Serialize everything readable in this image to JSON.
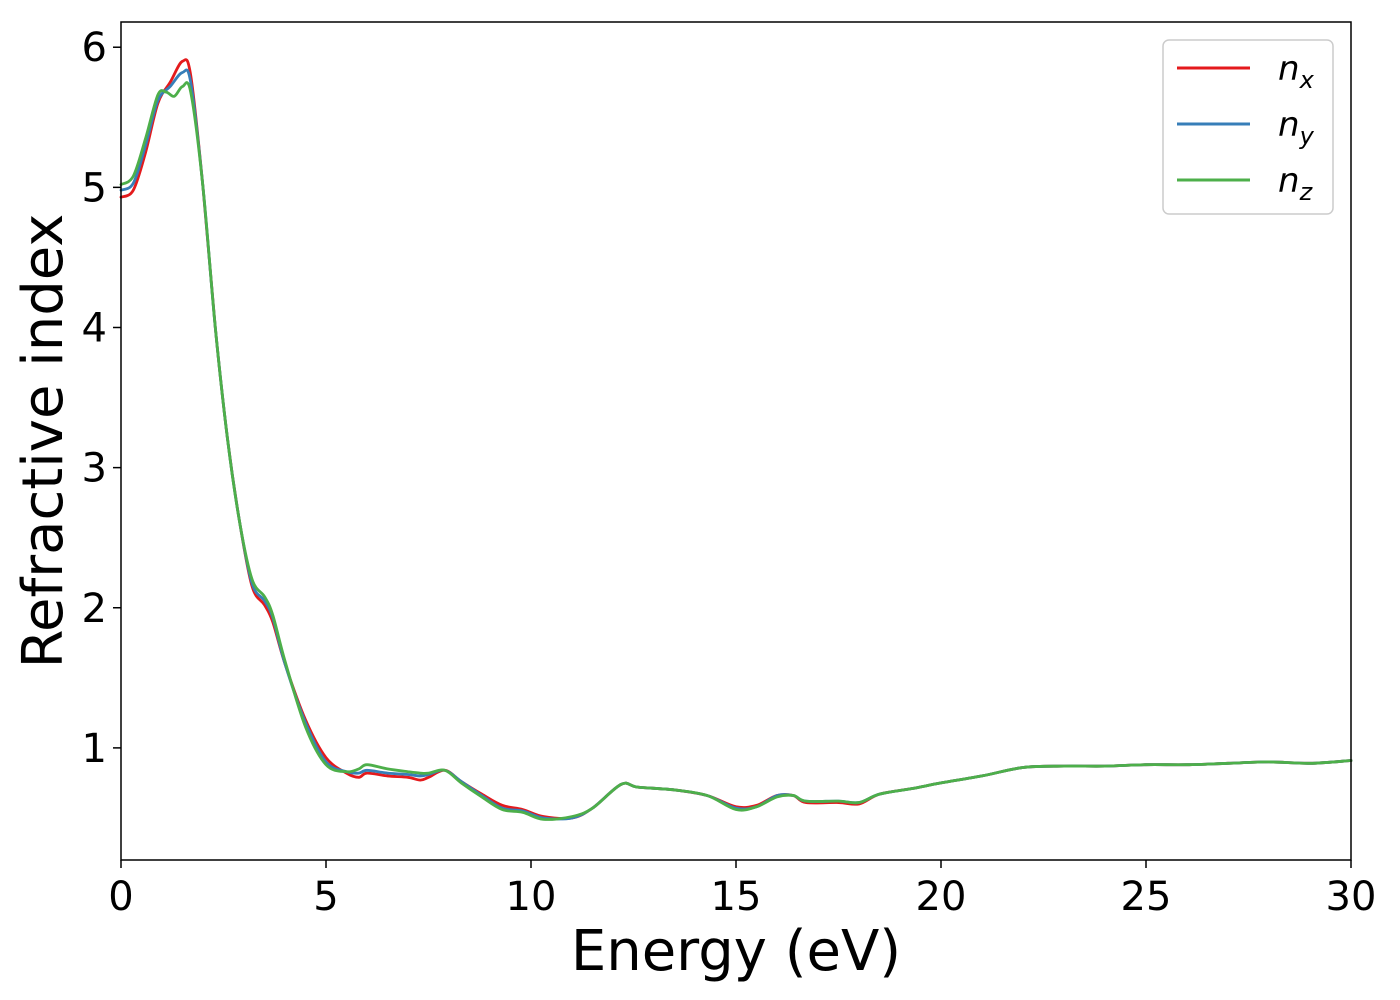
{
  "chart_data": {
    "type": "line",
    "title": "",
    "xlabel": "Energy (eV)",
    "ylabel": "Refractive index",
    "xlim": [
      0,
      30
    ],
    "ylim": [
      0.2,
      6.18
    ],
    "xticks": [
      "0",
      "5",
      "10",
      "15",
      "20",
      "25",
      "30"
    ],
    "yticks": [
      "1",
      "2",
      "3",
      "4",
      "5",
      "6"
    ],
    "xtick_values": [
      0,
      5,
      10,
      15,
      20,
      25,
      30
    ],
    "ytick_values": [
      1,
      2,
      3,
      4,
      5,
      6
    ],
    "grid": false,
    "legend": {
      "placement": "top-right"
    },
    "series": [
      {
        "name": "n",
        "subscript": "x",
        "color": "#e41a1c",
        "points": [
          [
            0,
            4.93
          ],
          [
            0.3,
            4.98
          ],
          [
            0.6,
            5.25
          ],
          [
            0.9,
            5.6
          ],
          [
            1.2,
            5.75
          ],
          [
            1.5,
            5.9
          ],
          [
            1.7,
            5.8
          ],
          [
            2.0,
            5.0
          ],
          [
            2.3,
            4.0
          ],
          [
            2.6,
            3.2
          ],
          [
            2.9,
            2.6
          ],
          [
            3.2,
            2.15
          ],
          [
            3.5,
            2.02
          ],
          [
            3.7,
            1.9
          ],
          [
            4.0,
            1.6
          ],
          [
            4.5,
            1.2
          ],
          [
            5.0,
            0.93
          ],
          [
            5.5,
            0.82
          ],
          [
            5.8,
            0.79
          ],
          [
            6.0,
            0.82
          ],
          [
            6.5,
            0.8
          ],
          [
            7.0,
            0.79
          ],
          [
            7.3,
            0.77
          ],
          [
            7.5,
            0.79
          ],
          [
            7.9,
            0.84
          ],
          [
            8.3,
            0.76
          ],
          [
            8.8,
            0.67
          ],
          [
            9.3,
            0.59
          ],
          [
            9.8,
            0.56
          ],
          [
            10.3,
            0.51
          ],
          [
            11.0,
            0.5
          ],
          [
            11.5,
            0.57
          ],
          [
            12.2,
            0.74
          ],
          [
            12.6,
            0.72
          ],
          [
            13.5,
            0.7
          ],
          [
            14.3,
            0.66
          ],
          [
            15.0,
            0.58
          ],
          [
            15.5,
            0.59
          ],
          [
            16.0,
            0.66
          ],
          [
            16.4,
            0.66
          ],
          [
            16.7,
            0.61
          ],
          [
            17.5,
            0.61
          ],
          [
            18.0,
            0.6
          ],
          [
            18.5,
            0.67
          ],
          [
            19.3,
            0.71
          ],
          [
            20.0,
            0.75
          ],
          [
            21.0,
            0.8
          ],
          [
            22.0,
            0.86
          ],
          [
            23.0,
            0.87
          ],
          [
            24.0,
            0.87
          ],
          [
            25.0,
            0.88
          ],
          [
            26.0,
            0.88
          ],
          [
            27.0,
            0.89
          ],
          [
            28.0,
            0.9
          ],
          [
            29.0,
            0.89
          ],
          [
            30.0,
            0.91
          ]
        ]
      },
      {
        "name": "n",
        "subscript": "y",
        "color": "#377eb8",
        "points": [
          [
            0,
            4.98
          ],
          [
            0.3,
            5.03
          ],
          [
            0.6,
            5.3
          ],
          [
            0.9,
            5.62
          ],
          [
            1.2,
            5.72
          ],
          [
            1.5,
            5.82
          ],
          [
            1.7,
            5.75
          ],
          [
            2.0,
            5.0
          ],
          [
            2.3,
            4.0
          ],
          [
            2.6,
            3.2
          ],
          [
            2.9,
            2.6
          ],
          [
            3.2,
            2.17
          ],
          [
            3.5,
            2.05
          ],
          [
            3.7,
            1.93
          ],
          [
            4.0,
            1.6
          ],
          [
            4.5,
            1.18
          ],
          [
            5.0,
            0.9
          ],
          [
            5.5,
            0.83
          ],
          [
            5.8,
            0.82
          ],
          [
            6.0,
            0.84
          ],
          [
            6.5,
            0.82
          ],
          [
            7.0,
            0.81
          ],
          [
            7.3,
            0.8
          ],
          [
            7.5,
            0.81
          ],
          [
            7.9,
            0.84
          ],
          [
            8.3,
            0.76
          ],
          [
            8.8,
            0.66
          ],
          [
            9.3,
            0.57
          ],
          [
            9.8,
            0.55
          ],
          [
            10.3,
            0.5
          ],
          [
            11.0,
            0.5
          ],
          [
            11.5,
            0.57
          ],
          [
            12.2,
            0.74
          ],
          [
            12.6,
            0.72
          ],
          [
            13.5,
            0.7
          ],
          [
            14.3,
            0.66
          ],
          [
            15.0,
            0.57
          ],
          [
            15.5,
            0.58
          ],
          [
            16.0,
            0.66
          ],
          [
            16.4,
            0.66
          ],
          [
            16.7,
            0.62
          ],
          [
            17.5,
            0.62
          ],
          [
            18.0,
            0.61
          ],
          [
            18.5,
            0.67
          ],
          [
            19.3,
            0.71
          ],
          [
            20.0,
            0.75
          ],
          [
            21.0,
            0.8
          ],
          [
            22.0,
            0.86
          ],
          [
            23.0,
            0.87
          ],
          [
            24.0,
            0.87
          ],
          [
            25.0,
            0.88
          ],
          [
            26.0,
            0.88
          ],
          [
            27.0,
            0.89
          ],
          [
            28.0,
            0.9
          ],
          [
            29.0,
            0.89
          ],
          [
            30.0,
            0.91
          ]
        ]
      },
      {
        "name": "n",
        "subscript": "z",
        "color": "#4daf4a",
        "points": [
          [
            0,
            5.02
          ],
          [
            0.3,
            5.08
          ],
          [
            0.6,
            5.35
          ],
          [
            0.9,
            5.66
          ],
          [
            1.1,
            5.68
          ],
          [
            1.3,
            5.65
          ],
          [
            1.5,
            5.72
          ],
          [
            1.7,
            5.68
          ],
          [
            2.0,
            5.0
          ],
          [
            2.3,
            4.0
          ],
          [
            2.6,
            3.2
          ],
          [
            2.9,
            2.6
          ],
          [
            3.2,
            2.2
          ],
          [
            3.5,
            2.08
          ],
          [
            3.7,
            1.95
          ],
          [
            4.0,
            1.62
          ],
          [
            4.5,
            1.15
          ],
          [
            5.0,
            0.88
          ],
          [
            5.5,
            0.83
          ],
          [
            5.8,
            0.85
          ],
          [
            6.0,
            0.88
          ],
          [
            6.5,
            0.85
          ],
          [
            7.0,
            0.83
          ],
          [
            7.3,
            0.82
          ],
          [
            7.5,
            0.82
          ],
          [
            7.9,
            0.84
          ],
          [
            8.3,
            0.75
          ],
          [
            8.8,
            0.65
          ],
          [
            9.3,
            0.56
          ],
          [
            9.8,
            0.54
          ],
          [
            10.3,
            0.49
          ],
          [
            11.0,
            0.51
          ],
          [
            11.5,
            0.57
          ],
          [
            12.2,
            0.74
          ],
          [
            12.6,
            0.72
          ],
          [
            13.5,
            0.7
          ],
          [
            14.3,
            0.66
          ],
          [
            15.0,
            0.56
          ],
          [
            15.5,
            0.58
          ],
          [
            16.0,
            0.65
          ],
          [
            16.4,
            0.66
          ],
          [
            16.7,
            0.62
          ],
          [
            17.5,
            0.62
          ],
          [
            18.0,
            0.61
          ],
          [
            18.5,
            0.67
          ],
          [
            19.3,
            0.71
          ],
          [
            20.0,
            0.75
          ],
          [
            21.0,
            0.8
          ],
          [
            22.0,
            0.86
          ],
          [
            23.0,
            0.87
          ],
          [
            24.0,
            0.87
          ],
          [
            25.0,
            0.88
          ],
          [
            26.0,
            0.88
          ],
          [
            27.0,
            0.89
          ],
          [
            28.0,
            0.9
          ],
          [
            29.0,
            0.89
          ],
          [
            30.0,
            0.91
          ]
        ]
      }
    ]
  }
}
